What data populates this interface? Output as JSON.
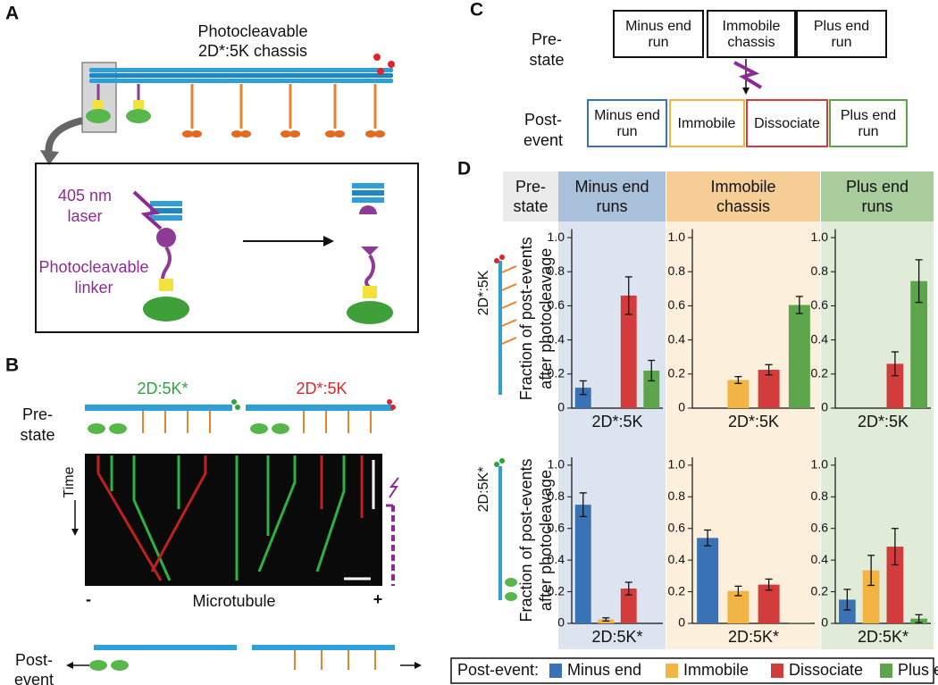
{
  "panel_a": {
    "label": "A",
    "title": [
      "Photocleavable",
      "2D*:5K chassis"
    ],
    "laser": [
      "405 nm",
      "laser"
    ],
    "linker": [
      "Photocleavable",
      "linker"
    ]
  },
  "panel_b": {
    "label": "B",
    "constructs": [
      "2D:5K*",
      "2D*:5K"
    ],
    "pre_state": [
      "Pre-",
      "state"
    ],
    "time": "Time",
    "axis": "Microtubule",
    "minus": "-",
    "plus": "+",
    "post_event": [
      "Post-",
      "event"
    ]
  },
  "panel_c": {
    "label": "C",
    "pre_state": [
      "Pre-",
      "state"
    ],
    "post_event": [
      "Post-",
      "event"
    ],
    "pre_boxes": [
      [
        "Minus end",
        "run"
      ],
      [
        "Immobile",
        "chassis"
      ],
      [
        "Plus end",
        "run"
      ]
    ],
    "post_boxes": [
      [
        "Minus end",
        "run"
      ],
      [
        "Immobile"
      ],
      [
        "Dissociate"
      ],
      [
        "Plus end",
        "run"
      ]
    ]
  },
  "panel_d": {
    "label": "D",
    "pre_state": [
      "Pre-",
      "state"
    ],
    "columns": [
      [
        "Minus end",
        "runs"
      ],
      [
        "Immobile",
        "chassis"
      ],
      [
        "Plus end",
        "runs"
      ]
    ],
    "rows": [
      "2D*:5K",
      "2D:5K*"
    ]
  },
  "legend": {
    "title": "Post-event:",
    "names": [
      "Minus end",
      "Immobile",
      "Dissociate",
      "Plus end"
    ],
    "colors": [
      "#3a73b5",
      "#f2b544",
      "#d33c3c",
      "#5ca54a"
    ]
  },
  "chart_data": [
    {
      "type": "bar",
      "ylabel": [
        "Fraction of post-events",
        "after photocleavage"
      ],
      "xlabel": "2D*:5K",
      "values": [
        0.12,
        null,
        0.66,
        0.22
      ],
      "errors": [
        0.04,
        null,
        0.11,
        0.06
      ],
      "ylim": [
        0,
        1.05
      ],
      "yticks": [
        0,
        {
          "value": 0.2,
          "label": "0.2"
        },
        {
          "value": 0.4,
          "label": "0.4"
        },
        {
          "value": 0.6,
          "label": "0.6"
        },
        {
          "value": 0.8,
          "label": "0.8"
        },
        {
          "value": 1.0,
          "label": "1.0"
        }
      ]
    },
    {
      "type": "bar",
      "xlabel": "2D*:5K",
      "values": [
        null,
        0.165,
        0.225,
        0.605
      ],
      "errors": [
        null,
        0.02,
        0.03,
        0.05
      ],
      "ylim": [
        0,
        1.05
      ],
      "yticks": [
        0,
        {
          "value": 0.2,
          "label": "0.2"
        },
        {
          "value": 0.4,
          "label": "0.4"
        },
        {
          "value": 0.6,
          "label": "0.6"
        },
        {
          "value": 0.8,
          "label": "0.8"
        },
        {
          "value": 1.0,
          "label": "1.0"
        }
      ]
    },
    {
      "type": "bar",
      "xlabel": "2D*:5K",
      "values": [
        null,
        null,
        0.26,
        0.745
      ],
      "errors": [
        null,
        null,
        0.07,
        0.125
      ],
      "ylim": [
        0,
        1.05
      ],
      "yticks": [
        0,
        {
          "value": 0.2,
          "label": "0.2"
        },
        {
          "value": 0.4,
          "label": "0.4"
        },
        {
          "value": 0.6,
          "label": "0.6"
        },
        {
          "value": 0.8,
          "label": "0.8"
        },
        {
          "value": 1.0,
          "label": "1.0"
        }
      ]
    },
    {
      "type": "bar",
      "ylabel": [
        "Fraction of post-events",
        "after photocleavage"
      ],
      "xlabel": "2D:5K*",
      "values": [
        0.75,
        0.025,
        0.22,
        null
      ],
      "errors": [
        0.075,
        0.01,
        0.04,
        null
      ],
      "ylim": [
        0,
        1.05
      ],
      "yticks": [
        0,
        {
          "value": 0.2,
          "label": "0.2"
        },
        {
          "value": 0.4,
          "label": "0.4"
        },
        {
          "value": 0.6,
          "label": "0.6"
        },
        {
          "value": 0.8,
          "label": "0.8"
        },
        {
          "value": 1.0,
          "label": "1.0"
        }
      ]
    },
    {
      "type": "bar",
      "xlabel": "2D:5K*",
      "values": [
        0.54,
        0.205,
        0.245,
        0.005
      ],
      "errors": [
        0.05,
        0.03,
        0.035,
        null
      ],
      "ylim": [
        0,
        1.05
      ],
      "yticks": [
        0,
        {
          "value": 0.2,
          "label": "0.2"
        },
        {
          "value": 0.4,
          "label": "0.4"
        },
        {
          "value": 0.6,
          "label": "0.6"
        },
        {
          "value": 0.8,
          "label": "0.8"
        },
        {
          "value": 1.0,
          "label": "1.0"
        }
      ]
    },
    {
      "type": "bar",
      "xlabel": "2D:5K*",
      "values": [
        0.15,
        0.335,
        0.485,
        0.03
      ],
      "errors": [
        0.065,
        0.095,
        0.115,
        0.025
      ],
      "ylim": [
        0,
        1.05
      ],
      "yticks": [
        0,
        {
          "value": 0.2,
          "label": "0.2"
        },
        {
          "value": 0.4,
          "label": "0.4"
        },
        {
          "value": 0.6,
          "label": "0.6"
        },
        {
          "value": 0.8,
          "label": "0.8"
        },
        {
          "value": 1.0,
          "label": "1.0"
        }
      ]
    }
  ]
}
